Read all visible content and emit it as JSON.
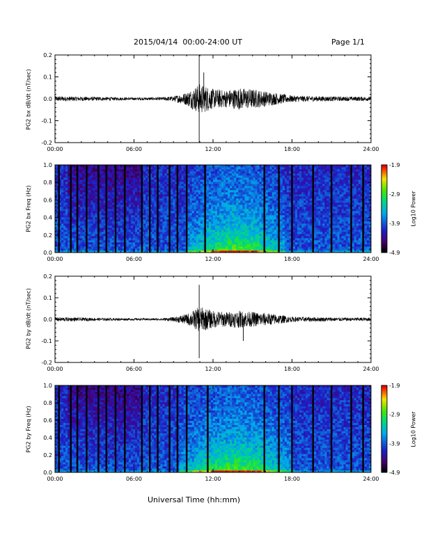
{
  "header": {
    "title": "2015/04/14  00:00-24:00 UT",
    "page": "Page 1/1"
  },
  "footer": {
    "xlabel": "Universal Time (hh:mm)"
  },
  "chart_data": [
    {
      "type": "line",
      "ylabel": "PG2 bx dB/dt (nT/sec)",
      "xlim": [
        0,
        24
      ],
      "ylim": [
        -0.2,
        0.2
      ],
      "x_ticks": [
        "00:00",
        "06:00",
        "12:00",
        "18:00",
        "24:00"
      ],
      "y_ticks": [
        "-0.2",
        "-0.1",
        "0.0",
        "0.1",
        "0.2"
      ],
      "envelope": {
        "x_hours": [
          0,
          2,
          4,
          6,
          8,
          9,
          10,
          10.5,
          11,
          11.5,
          12,
          13,
          14,
          15,
          16,
          17,
          18,
          20,
          22,
          24
        ],
        "amplitude": [
          0.012,
          0.01,
          0.008,
          0.006,
          0.007,
          0.012,
          0.03,
          0.05,
          0.07,
          0.06,
          0.045,
          0.04,
          0.05,
          0.045,
          0.035,
          0.025,
          0.015,
          0.012,
          0.01,
          0.01
        ]
      },
      "spikes": [
        {
          "x_hour": 10.95,
          "y": 0.2
        },
        {
          "x_hour": 10.95,
          "y": -0.2
        },
        {
          "x_hour": 11.3,
          "y": 0.12
        }
      ]
    },
    {
      "type": "heatmap",
      "ylabel": "PG2 bx Freq (Hz)",
      "xlim": [
        0,
        24
      ],
      "ylim": [
        0.0,
        1.0
      ],
      "x_ticks": [
        "00:00",
        "06:00",
        "12:00",
        "18:00",
        "24:00"
      ],
      "y_ticks": [
        "0.0",
        "0.2",
        "0.4",
        "0.6",
        "0.8",
        "1.0"
      ],
      "colorbar": {
        "label": "Log10 Power",
        "range": [
          -4.9,
          -1.9
        ],
        "ticks": [
          "-1.9",
          "-2.9",
          "-3.9",
          "-4.9"
        ]
      },
      "data_gaps_hours": [
        0.3,
        1.2,
        1.7,
        2.4,
        3.3,
        3.9,
        4.6,
        5.3,
        6.6,
        7.2,
        7.8,
        8.7,
        9.3,
        10.0,
        11.4,
        15.9,
        17.0,
        18.0,
        19.6,
        21.0,
        22.5,
        23.4
      ],
      "features": {
        "low_freq_power_hours": [
          10.0,
          17.5
        ],
        "night_low_power_hours": [
          1.0,
          6.5
        ]
      }
    },
    {
      "type": "line",
      "ylabel": "PG2 by dB/dt (nT/sec)",
      "xlim": [
        0,
        24
      ],
      "ylim": [
        -0.2,
        0.2
      ],
      "x_ticks": [
        "00:00",
        "06:00",
        "12:00",
        "18:00",
        "24:00"
      ],
      "y_ticks": [
        "-0.2",
        "-0.1",
        "0.0",
        "0.1",
        "0.2"
      ],
      "envelope": {
        "x_hours": [
          0,
          2,
          4,
          6,
          8,
          9,
          10,
          10.5,
          11,
          11.5,
          12,
          13,
          14,
          15,
          16,
          17,
          18,
          20,
          22,
          24
        ],
        "amplitude": [
          0.01,
          0.008,
          0.006,
          0.005,
          0.005,
          0.01,
          0.025,
          0.04,
          0.06,
          0.05,
          0.04,
          0.035,
          0.04,
          0.035,
          0.03,
          0.022,
          0.012,
          0.01,
          0.008,
          0.008
        ]
      },
      "spikes": [
        {
          "x_hour": 10.95,
          "y": 0.16
        },
        {
          "x_hour": 10.95,
          "y": -0.18
        },
        {
          "x_hour": 14.3,
          "y": -0.1
        }
      ]
    },
    {
      "type": "heatmap",
      "ylabel": "PG2 by Freq (Hz)",
      "xlim": [
        0,
        24
      ],
      "ylim": [
        0.0,
        1.0
      ],
      "x_ticks": [
        "00:00",
        "06:00",
        "12:00",
        "18:00",
        "24:00"
      ],
      "y_ticks": [
        "0.0",
        "0.2",
        "0.4",
        "0.6",
        "0.8",
        "1.0"
      ],
      "colorbar": {
        "label": "Log10 Power",
        "range": [
          -4.9,
          -1.9
        ],
        "ticks": [
          "-1.9",
          "-2.9",
          "-3.9",
          "-4.9"
        ]
      },
      "data_gaps_hours": [
        0.3,
        1.2,
        1.7,
        2.4,
        3.3,
        3.9,
        4.6,
        5.3,
        6.6,
        7.2,
        7.8,
        8.7,
        9.3,
        10.0,
        11.6,
        15.9,
        17.0,
        18.0,
        19.6,
        21.0,
        22.5,
        23.4
      ],
      "features": {
        "low_freq_power_hours": [
          9.5,
          18.0
        ],
        "night_low_power_hours": [
          1.0,
          6.5
        ]
      }
    }
  ]
}
